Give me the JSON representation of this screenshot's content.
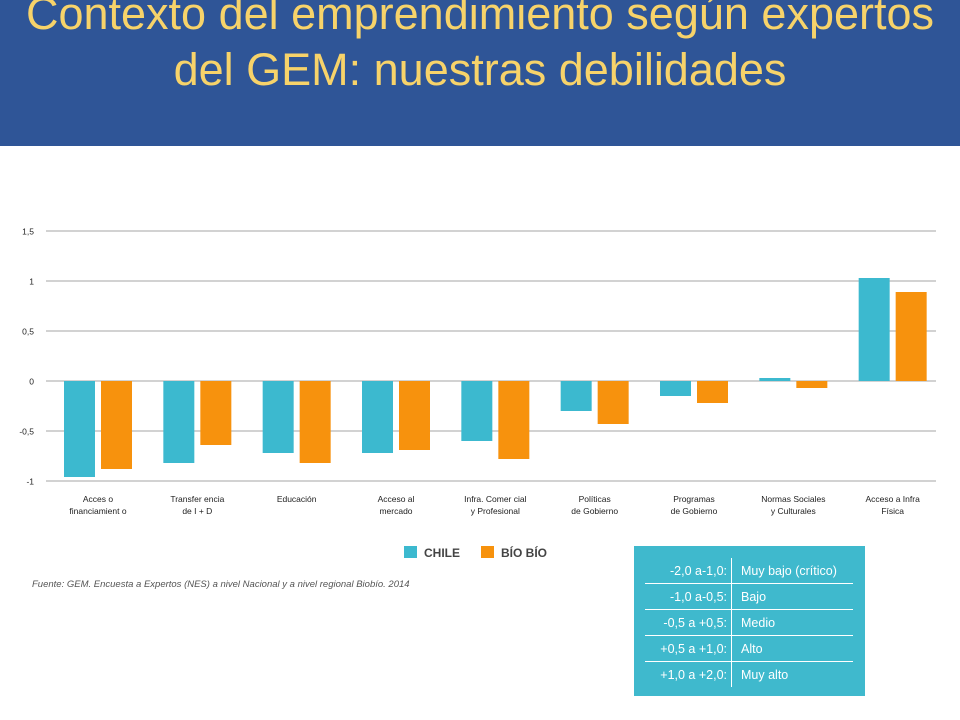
{
  "slide": {
    "title": "Contexto del emprendimiento según expertos del GEM: nuestras debilidades"
  },
  "chart_data": {
    "type": "bar",
    "categories": [
      [
        "Acces o",
        "financiamient o"
      ],
      [
        "Transfer encia",
        "de I + D"
      ],
      [
        "Educación"
      ],
      [
        "Acceso al",
        "mercado"
      ],
      [
        "Infra. Comer cial",
        "y Profesional"
      ],
      [
        "Políticas",
        "de Gobierno"
      ],
      [
        "Programas",
        "de Gobierno"
      ],
      [
        "Normas Sociales",
        "y Culturales"
      ],
      [
        "Acceso a Infra",
        "Física"
      ]
    ],
    "series": [
      {
        "name": "CHILE",
        "values": [
          -0.96,
          -0.82,
          -0.72,
          -0.72,
          -0.6,
          -0.3,
          -0.15,
          0.03,
          1.03
        ]
      },
      {
        "name": "BÍO BÍO",
        "values": [
          -0.88,
          -0.64,
          -0.82,
          -0.69,
          -0.78,
          -0.43,
          -0.22,
          -0.07,
          0.89
        ]
      }
    ],
    "y_ticks": [
      "1,5",
      "1",
      "0,5",
      "0",
      "-0,5",
      "-1"
    ],
    "y_tick_values": [
      1.5,
      1,
      0.5,
      0,
      -0.5,
      -1
    ],
    "ylim": [
      -1,
      1.5
    ],
    "grid": true,
    "legend_position": "bottom-center",
    "colors": {
      "chile": "#3cb9cf",
      "biobio": "#f7920d",
      "grid": "#a6a6a6",
      "text": "#222222"
    }
  },
  "source": "Fuente: GEM. Encuesta a Expertos (NES) a nivel Nacional y a nivel regional Biobío. 2014",
  "scale_legend": {
    "rows": [
      {
        "range": "-2,0 a-1,0:",
        "label": "Muy bajo (crítico)"
      },
      {
        "range": "-1,0 a-0,5:",
        "label": "Bajo"
      },
      {
        "range": "-0,5 a +0,5:",
        "label": "Medio"
      },
      {
        "range": "+0,5 a +1,0:",
        "label": "Alto"
      },
      {
        "range": "+1,0 a +2,0:",
        "label": "Muy alto"
      }
    ]
  }
}
